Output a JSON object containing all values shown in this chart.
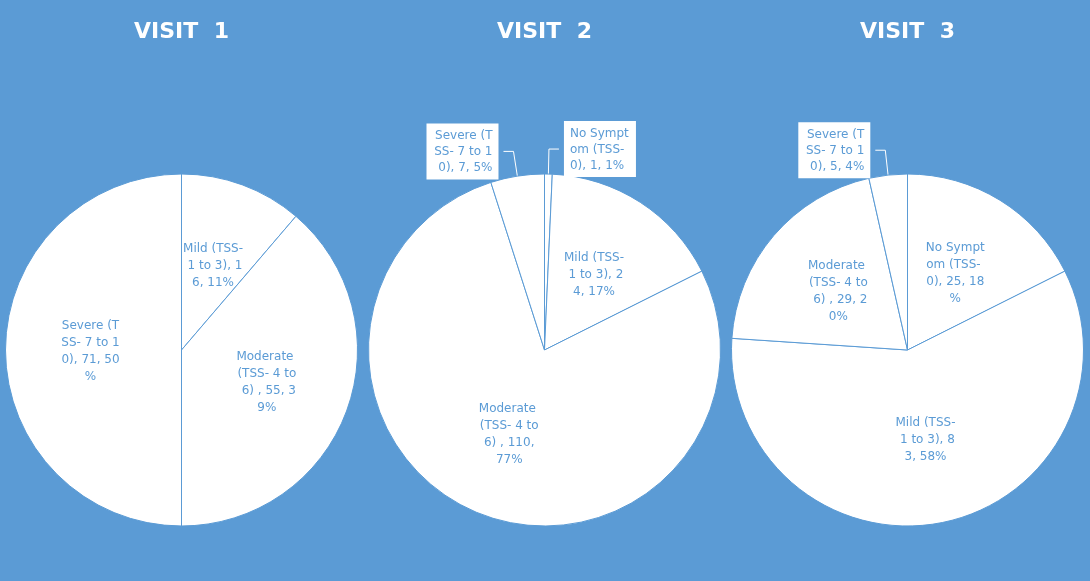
{
  "chart_data": [
    {
      "type": "pie",
      "title": "VISIT  1",
      "categories": [
        "Mild (TSS- 1 to 3)",
        "Moderate (TSS- 4 to 6) ",
        "Severe (TSS- 7 to 10)"
      ],
      "values": [
        16,
        55,
        71
      ],
      "colors": [
        "#ffffff",
        "#ffffff",
        "#ffffff"
      ],
      "value_labels": [
        "16, 11%",
        "55, 39%",
        "71, 50%"
      ]
    },
    {
      "type": "pie",
      "title": "VISIT  2",
      "categories": [
        "No Symptom (TSS- 0)",
        "Mild (TSS- 1 to 3)",
        "Moderate (TSS- 4 to 6) ",
        "Severe (TSS- 7 to 10)"
      ],
      "values": [
        1,
        24,
        110,
        7
      ],
      "colors": [
        "#ffffff",
        "#ffffff",
        "#ffffff",
        "#ffffff"
      ],
      "value_labels": [
        "1, 1%",
        "24, 17%",
        "110, 77%",
        "7, 5%"
      ]
    },
    {
      "type": "pie",
      "title": "VISIT  3",
      "categories": [
        "No Symptom (TSS- 0)",
        "Mild (TSS- 1 to 3)",
        "Moderate (TSS- 4 to 6) ",
        "Severe (TSS- 7 to 10)"
      ],
      "values": [
        25,
        83,
        29,
        5
      ],
      "colors": [
        "#ffffff",
        "#ffffff",
        "#ffffff",
        "#ffffff"
      ],
      "value_labels": [
        "25, 18%",
        "83, 58%",
        "29, 20%",
        "5, 4%"
      ]
    }
  ]
}
